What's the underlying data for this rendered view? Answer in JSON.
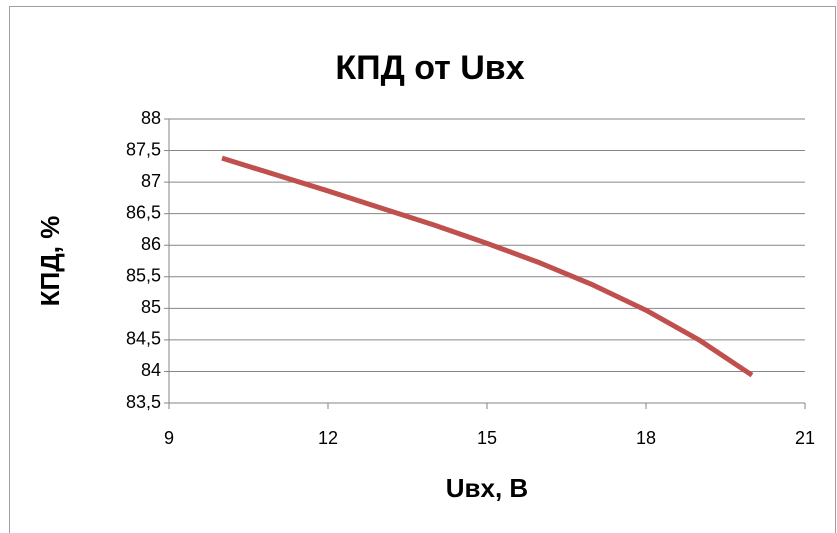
{
  "chart_data": {
    "type": "line",
    "title": "КПД от Uвх",
    "x_label": "Uвх, В",
    "y_label": "КПД, %",
    "x": [
      10,
      11,
      12,
      13,
      14,
      15,
      16,
      17,
      18,
      19,
      20
    ],
    "series": [
      {
        "name": "КПД",
        "color": "#c0504d",
        "values": [
          87.38,
          87.12,
          86.86,
          86.59,
          86.32,
          86.03,
          85.72,
          85.37,
          84.97,
          84.5,
          83.94
        ]
      }
    ],
    "xlim": [
      9,
      21
    ],
    "xticks": [
      9,
      12,
      15,
      18,
      21
    ],
    "ylim": [
      83.5,
      88
    ],
    "yticks": [
      {
        "value": 83.5,
        "label": "83,5"
      },
      84,
      {
        "value": 84.5,
        "label": "84,5"
      },
      85,
      {
        "value": 85.5,
        "label": "85,5"
      },
      86,
      {
        "value": 86.5,
        "label": "86,5"
      },
      87,
      {
        "value": 87.5,
        "label": "87,5"
      },
      88
    ],
    "grid": true
  }
}
